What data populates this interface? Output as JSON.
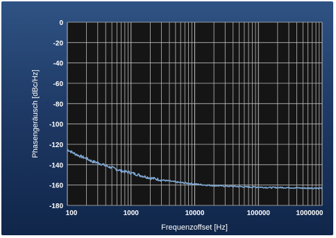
{
  "chart_data": {
    "type": "line",
    "title": "",
    "xlabel": "Frequenzoffset [Hz]",
    "ylabel": "Phasengeräusch [dBc/Hz]",
    "x_scale": "log",
    "xlim": [
      100,
      1000000
    ],
    "ylim": [
      -180,
      0
    ],
    "grid": true,
    "x_ticks": [
      100,
      1000,
      10000,
      100000,
      1000000
    ],
    "x_tick_labels": [
      "100",
      "1000",
      "10000",
      "100000",
      "1000000"
    ],
    "y_ticks": [
      0,
      -20,
      -40,
      -60,
      -80,
      -100,
      -120,
      -140,
      -160,
      -180
    ],
    "y_tick_labels": [
      "0",
      "-20",
      "-40",
      "-60",
      "-80",
      "-100",
      "-120",
      "-140",
      "-160",
      "-180"
    ],
    "line_color": "#7ea8d6",
    "plot_background": "#151515",
    "series": [
      {
        "x": [
          100,
          120,
          150,
          200,
          250,
          300,
          400,
          500,
          700,
          1000,
          1500,
          2000,
          3000,
          5000,
          7000,
          10000,
          15000,
          20000,
          30000,
          50000,
          70000,
          100000,
          150000,
          200000,
          300000,
          500000,
          700000,
          1000000
        ],
        "y": [
          -125,
          -128,
          -131,
          -134,
          -137,
          -138,
          -141,
          -143,
          -146,
          -148,
          -151,
          -153,
          -155,
          -157,
          -158,
          -159,
          -160,
          -160.5,
          -161,
          -161.5,
          -162,
          -162,
          -162.5,
          -162.5,
          -162.5,
          -163,
          -163,
          -163
        ]
      }
    ]
  }
}
